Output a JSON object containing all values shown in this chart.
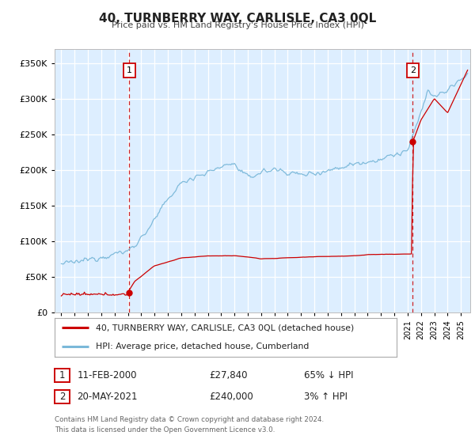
{
  "title": "40, TURNBERRY WAY, CARLISLE, CA3 0QL",
  "subtitle": "Price paid vs. HM Land Registry's House Price Index (HPI)",
  "background_color": "#ffffff",
  "plot_bg_color": "#ddeeff",
  "grid_color": "#ffffff",
  "xlim": [
    1994.5,
    2025.7
  ],
  "ylim": [
    0,
    370000
  ],
  "yticks": [
    0,
    50000,
    100000,
    150000,
    200000,
    250000,
    300000,
    350000
  ],
  "ytick_labels": [
    "£0",
    "£50K",
    "£100K",
    "£150K",
    "£200K",
    "£250K",
    "£300K",
    "£350K"
  ],
  "xtick_years": [
    1995,
    1996,
    1997,
    1998,
    1999,
    2000,
    2001,
    2002,
    2003,
    2004,
    2005,
    2006,
    2007,
    2008,
    2009,
    2010,
    2011,
    2012,
    2013,
    2014,
    2015,
    2016,
    2017,
    2018,
    2019,
    2020,
    2021,
    2022,
    2023,
    2024,
    2025
  ],
  "sale1_x": 2000.11,
  "sale1_y": 27840,
  "sale2_x": 2021.38,
  "sale2_y": 240000,
  "vline1_x": 2000.11,
  "vline2_x": 2021.38,
  "legend_line1": "40, TURNBERRY WAY, CARLISLE, CA3 0QL (detached house)",
  "legend_line2": "HPI: Average price, detached house, Cumberland",
  "annotation1_date": "11-FEB-2000",
  "annotation1_price": "£27,840",
  "annotation1_hpi": "65% ↓ HPI",
  "annotation2_date": "20-MAY-2021",
  "annotation2_price": "£240,000",
  "annotation2_hpi": "3% ↑ HPI",
  "footer": "Contains HM Land Registry data © Crown copyright and database right 2024.\nThis data is licensed under the Open Government Licence v3.0.",
  "line_hpi_color": "#7ab8d9",
  "line_price_color": "#cc0000",
  "point_color": "#cc0000",
  "fig_width": 6.0,
  "fig_height": 5.6,
  "dpi": 100
}
